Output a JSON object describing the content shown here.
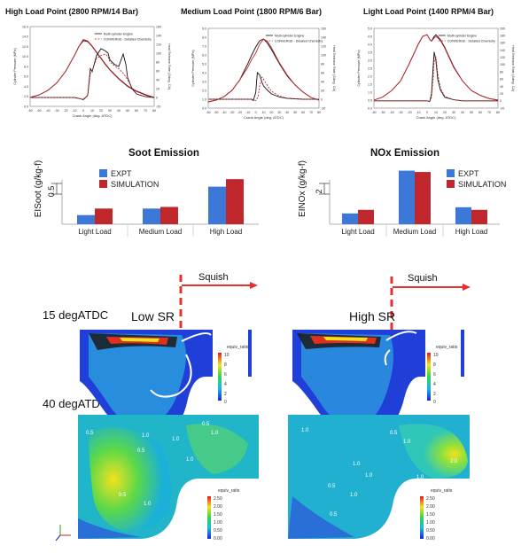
{
  "titles": {
    "p1": "High Load Point (2800 RPM/14 Bar)",
    "p2": "Medium Load Point (1800 RPM/6 Bar)",
    "p3": "Light Load Point (1400 RPM/4 Bar)",
    "soot": "Soot Emission",
    "nox": "NOx Emission"
  },
  "cfd": {
    "squish": "Squish",
    "deg15": "15 degATDC",
    "deg40": "40 degATDC",
    "low_sr": "Low SR",
    "high_sr": "High SR",
    "legend_title": "equiv_ratio",
    "cb_top_ticks": [
      "10",
      "8",
      "6",
      "4",
      "2",
      "0"
    ],
    "cb_bot_ticks": [
      "2.50",
      "2.00",
      "1.50",
      "1.00",
      "0.50",
      "0.00"
    ],
    "contour_labels_left": [
      "0.5",
      "1.0",
      "0.5",
      "1.0",
      "0.5",
      "1.0",
      "1.0",
      "0.5",
      "1.0",
      "1.0"
    ],
    "contour_labels_right": [
      "1.0",
      "0.5",
      "1.0",
      "1.0",
      "1.0",
      "2.0",
      "1.0",
      "0.5",
      "1.0",
      "0.5"
    ]
  },
  "chart_data": [
    {
      "type": "line",
      "title": "High Load Point (2800 RPM/14 Bar)",
      "xlabel": "Crank Angle (deg. ATDC)",
      "ylabel": "Cylinder Pressure (MPa)",
      "y2label": "Heat Release Rate (J/deg. CA)",
      "xlim": [
        -60,
        80
      ],
      "ylim": [
        0,
        16
      ],
      "y2lim": [
        -20,
        160
      ],
      "xticks": [
        "-60",
        "-50",
        "-40",
        "-30",
        "-20",
        "-10",
        "0",
        "10",
        "20",
        "30",
        "40",
        "50",
        "60",
        "70",
        "80"
      ],
      "yticks": [
        "0.0",
        "2.0",
        "4.0",
        "6.0",
        "8.0",
        "10.0",
        "12.0",
        "14.0",
        "16.0"
      ],
      "y2ticks": [
        "-20",
        "0",
        "20",
        "40",
        "60",
        "80",
        "100",
        "120",
        "140",
        "160"
      ],
      "legend": [
        "Multi-cylinder Engine",
        "CONVERGE - Detailed Chemistry"
      ],
      "series": [
        {
          "name": "Multi-cylinder Engine",
          "axis": "pressure",
          "x": [
            -60,
            -50,
            -40,
            -30,
            -20,
            -10,
            -5,
            0,
            5,
            10,
            15,
            20,
            25,
            30,
            40,
            50,
            60,
            70,
            80
          ],
          "y": [
            1.8,
            2.3,
            3.2,
            4.7,
            7.0,
            10.2,
            12.0,
            13.2,
            13.0,
            12.0,
            10.8,
            9.6,
            8.4,
            7.3,
            5.5,
            4.0,
            3.0,
            2.3,
            1.8
          ]
        },
        {
          "name": "CONVERGE - Detailed Chemistry",
          "axis": "pressure",
          "x": [
            -60,
            -50,
            -40,
            -30,
            -20,
            -10,
            -5,
            0,
            5,
            10,
            15,
            20,
            25,
            30,
            40,
            50,
            60,
            70,
            80
          ],
          "y": [
            1.8,
            2.3,
            3.2,
            4.7,
            7.0,
            10.2,
            12.0,
            13.4,
            13.1,
            12.1,
            10.9,
            9.7,
            8.5,
            7.4,
            5.6,
            4.1,
            3.1,
            2.4,
            1.8
          ]
        },
        {
          "name": "Multi-cylinder Engine",
          "axis": "hrr",
          "x": [
            -60,
            -20,
            -10,
            -5,
            0,
            5,
            8,
            10,
            15,
            20,
            25,
            28,
            30,
            35,
            40,
            45,
            48,
            50,
            55,
            60,
            70,
            80
          ],
          "y": [
            0,
            0,
            0,
            -2,
            -5,
            5,
            65,
            58,
            95,
            110,
            105,
            100,
            85,
            75,
            70,
            98,
            75,
            45,
            20,
            8,
            2,
            0
          ]
        },
        {
          "name": "CONVERGE - Detailed Chemistry",
          "axis": "hrr",
          "x": [
            -60,
            -20,
            -10,
            -5,
            0,
            5,
            8,
            10,
            15,
            20,
            25,
            28,
            30,
            35,
            40,
            45,
            50,
            55,
            60,
            70,
            80
          ],
          "y": [
            0,
            0,
            0,
            -2,
            -4,
            5,
            55,
            60,
            88,
            95,
            98,
            92,
            80,
            72,
            65,
            55,
            40,
            22,
            8,
            2,
            0
          ]
        }
      ]
    },
    {
      "type": "line",
      "title": "Medium Load Point (1800 RPM/6 Bar)",
      "xlabel": "Crank Angle (deg. ATDC)",
      "ylabel": "Cylinder Pressure (MPa)",
      "y2label": "Heat Release Rate (J/deg. CA)",
      "xlim": [
        -60,
        80
      ],
      "ylim": [
        0,
        9
      ],
      "y2lim": [
        -20,
        160
      ],
      "xticks": [
        "-60",
        "-50",
        "-40",
        "-30",
        "-20",
        "-10",
        "0",
        "10",
        "20",
        "30",
        "40",
        "50",
        "60",
        "70",
        "80"
      ],
      "yticks": [
        "0.0",
        "1.0",
        "2.0",
        "3.0",
        "4.0",
        "5.0",
        "6.0",
        "7.0",
        "8.0",
        "9.0"
      ],
      "y2ticks": [
        "-20",
        "0",
        "20",
        "40",
        "60",
        "80",
        "100",
        "120",
        "140",
        "160"
      ],
      "legend": [
        "Multi-cylinder Engine",
        "CONVERGE - Detailed Chemistry"
      ],
      "series": [
        {
          "name": "Multi-cylinder Engine",
          "axis": "pressure",
          "x": [
            -60,
            -50,
            -40,
            -30,
            -20,
            -10,
            -5,
            0,
            5,
            10,
            15,
            20,
            30,
            40,
            50,
            60,
            70,
            80
          ],
          "y": [
            0.7,
            0.9,
            1.3,
            2.0,
            3.2,
            5.0,
            6.0,
            6.9,
            7.6,
            7.8,
            7.3,
            6.6,
            5.0,
            3.6,
            2.6,
            1.8,
            1.2,
            0.9
          ]
        },
        {
          "name": "CONVERGE - Detailed Chemistry",
          "axis": "pressure",
          "x": [
            -60,
            -50,
            -40,
            -30,
            -20,
            -10,
            -5,
            0,
            5,
            10,
            15,
            20,
            30,
            40,
            50,
            60,
            70,
            80
          ],
          "y": [
            0.7,
            0.9,
            1.3,
            2.0,
            3.2,
            4.6,
            5.5,
            6.2,
            7.2,
            7.8,
            7.5,
            6.8,
            5.1,
            3.7,
            2.6,
            1.8,
            1.2,
            0.9
          ]
        },
        {
          "name": "Multi-cylinder Engine",
          "axis": "hrr",
          "x": [
            -60,
            -20,
            -10,
            -5,
            -3,
            0,
            2,
            5,
            8,
            10,
            15,
            20,
            30,
            40,
            60,
            80
          ],
          "y": [
            0,
            0,
            0,
            0,
            -3,
            15,
            60,
            55,
            38,
            30,
            20,
            12,
            5,
            2,
            0,
            0
          ]
        },
        {
          "name": "CONVERGE - Detailed Chemistry",
          "axis": "hrr",
          "x": [
            -60,
            -20,
            -10,
            -5,
            0,
            3,
            5,
            8,
            10,
            15,
            20,
            30,
            40,
            60,
            80
          ],
          "y": [
            0,
            0,
            0,
            0,
            -3,
            5,
            30,
            50,
            45,
            30,
            18,
            7,
            2,
            0,
            0
          ]
        }
      ]
    },
    {
      "type": "line",
      "title": "Light Load Point (1400 RPM/4 Bar)",
      "xlabel": "Crank Angle (deg. ATDC)",
      "ylabel": "Cylinder Pressure (MPa)",
      "y2label": "Heat Release Rate (J/deg. CA)",
      "xlim": [
        -60,
        80
      ],
      "ylim": [
        0,
        5
      ],
      "y2lim": [
        -20,
        200
      ],
      "xticks": [
        "-60",
        "-50",
        "-40",
        "-30",
        "-20",
        "-10",
        "0",
        "10",
        "20",
        "30",
        "40",
        "50",
        "60",
        "70",
        "80"
      ],
      "yticks": [
        "0.0",
        "0.5",
        "1.0",
        "1.5",
        "2.0",
        "2.5",
        "3.0",
        "3.5",
        "4.0",
        "4.5",
        "5.0"
      ],
      "y2ticks": [
        "-20",
        "0",
        "20",
        "40",
        "60",
        "80",
        "100",
        "120",
        "140",
        "160",
        "180",
        "200"
      ],
      "legend": [
        "Multi-cylinder Engine",
        "CONVERGE - Detailed Chemistry"
      ],
      "series": [
        {
          "name": "Multi-cylinder Engine",
          "axis": "pressure",
          "x": [
            -60,
            -50,
            -40,
            -30,
            -20,
            -10,
            -5,
            0,
            3,
            5,
            8,
            10,
            15,
            20,
            30,
            40,
            50,
            60,
            70,
            80
          ],
          "y": [
            0.5,
            0.7,
            1.1,
            1.7,
            2.8,
            4.0,
            4.5,
            4.6,
            4.3,
            4.2,
            4.5,
            4.6,
            4.3,
            3.8,
            2.6,
            1.7,
            1.1,
            0.8,
            0.6,
            0.5
          ]
        },
        {
          "name": "CONVERGE - Detailed Chemistry",
          "axis": "pressure",
          "x": [
            -60,
            -50,
            -40,
            -30,
            -20,
            -10,
            -5,
            0,
            3,
            5,
            8,
            10,
            15,
            20,
            30,
            40,
            50,
            60,
            70,
            80
          ],
          "y": [
            0.5,
            0.7,
            1.1,
            1.7,
            2.8,
            4.0,
            4.5,
            4.6,
            4.3,
            4.2,
            4.4,
            4.5,
            4.25,
            3.75,
            2.55,
            1.7,
            1.1,
            0.8,
            0.6,
            0.5
          ]
        },
        {
          "name": "Multi-cylinder Engine",
          "axis": "hrr",
          "x": [
            -60,
            -10,
            0,
            3,
            5,
            7,
            8,
            10,
            12,
            15,
            20,
            30,
            40,
            60,
            80
          ],
          "y": [
            0,
            0,
            0,
            -2,
            20,
            100,
            135,
            110,
            60,
            30,
            10,
            3,
            0,
            0,
            0
          ]
        },
        {
          "name": "CONVERGE - Detailed Chemistry",
          "axis": "hrr",
          "x": [
            -60,
            -10,
            0,
            3,
            5,
            7,
            8,
            10,
            12,
            15,
            20,
            30,
            40,
            60,
            80
          ],
          "y": [
            0,
            0,
            0,
            -2,
            10,
            70,
            110,
            120,
            75,
            35,
            12,
            3,
            0,
            0,
            0
          ]
        }
      ]
    },
    {
      "type": "bar",
      "title": "Soot Emission",
      "ylabel": "EISoot (g/kg-f)",
      "ytick_label": "0.5",
      "categories": [
        "Light Load",
        "Medium Load",
        "High Load"
      ],
      "series": [
        {
          "name": "EXPT",
          "values": [
            0.28,
            0.48,
            1.15
          ],
          "color": "#3c78d8"
        },
        {
          "name": "SIMULATION",
          "values": [
            0.48,
            0.53,
            1.38
          ],
          "color": "#c0272d"
        }
      ]
    },
    {
      "type": "bar",
      "title": "NOx Emission",
      "ylabel": "EINOx (g/kg-f)",
      "ytick_label": "2",
      "categories": [
        "Light Load",
        "Medium Load",
        "High Load"
      ],
      "series": [
        {
          "name": "EXPT",
          "values": [
            1.65,
            8.2,
            2.6
          ],
          "color": "#3c78d8"
        },
        {
          "name": "SIMULATION",
          "values": [
            2.2,
            8.0,
            2.2
          ],
          "color": "#c0272d"
        }
      ]
    }
  ],
  "colors": {
    "expt": "#3c78d8",
    "sim": "#c0272d",
    "engine_line": "#111111",
    "converge_line": "#c0272d"
  }
}
